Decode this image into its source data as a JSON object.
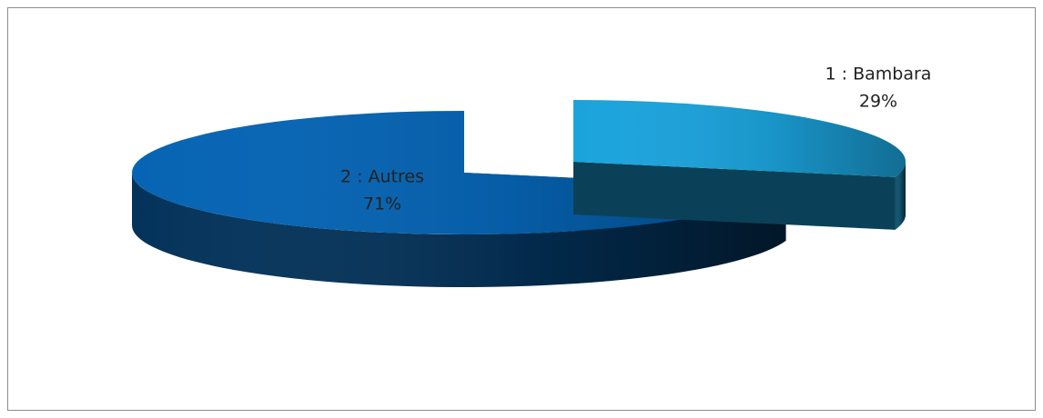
{
  "chart_data": {
    "type": "pie3d",
    "categories": [
      "1 : Bambara",
      "2 : Autres"
    ],
    "values": [
      29,
      71
    ],
    "value_labels": [
      "29%",
      "71%"
    ],
    "colors": [
      "#1ba3dc",
      "#0664b4"
    ]
  }
}
